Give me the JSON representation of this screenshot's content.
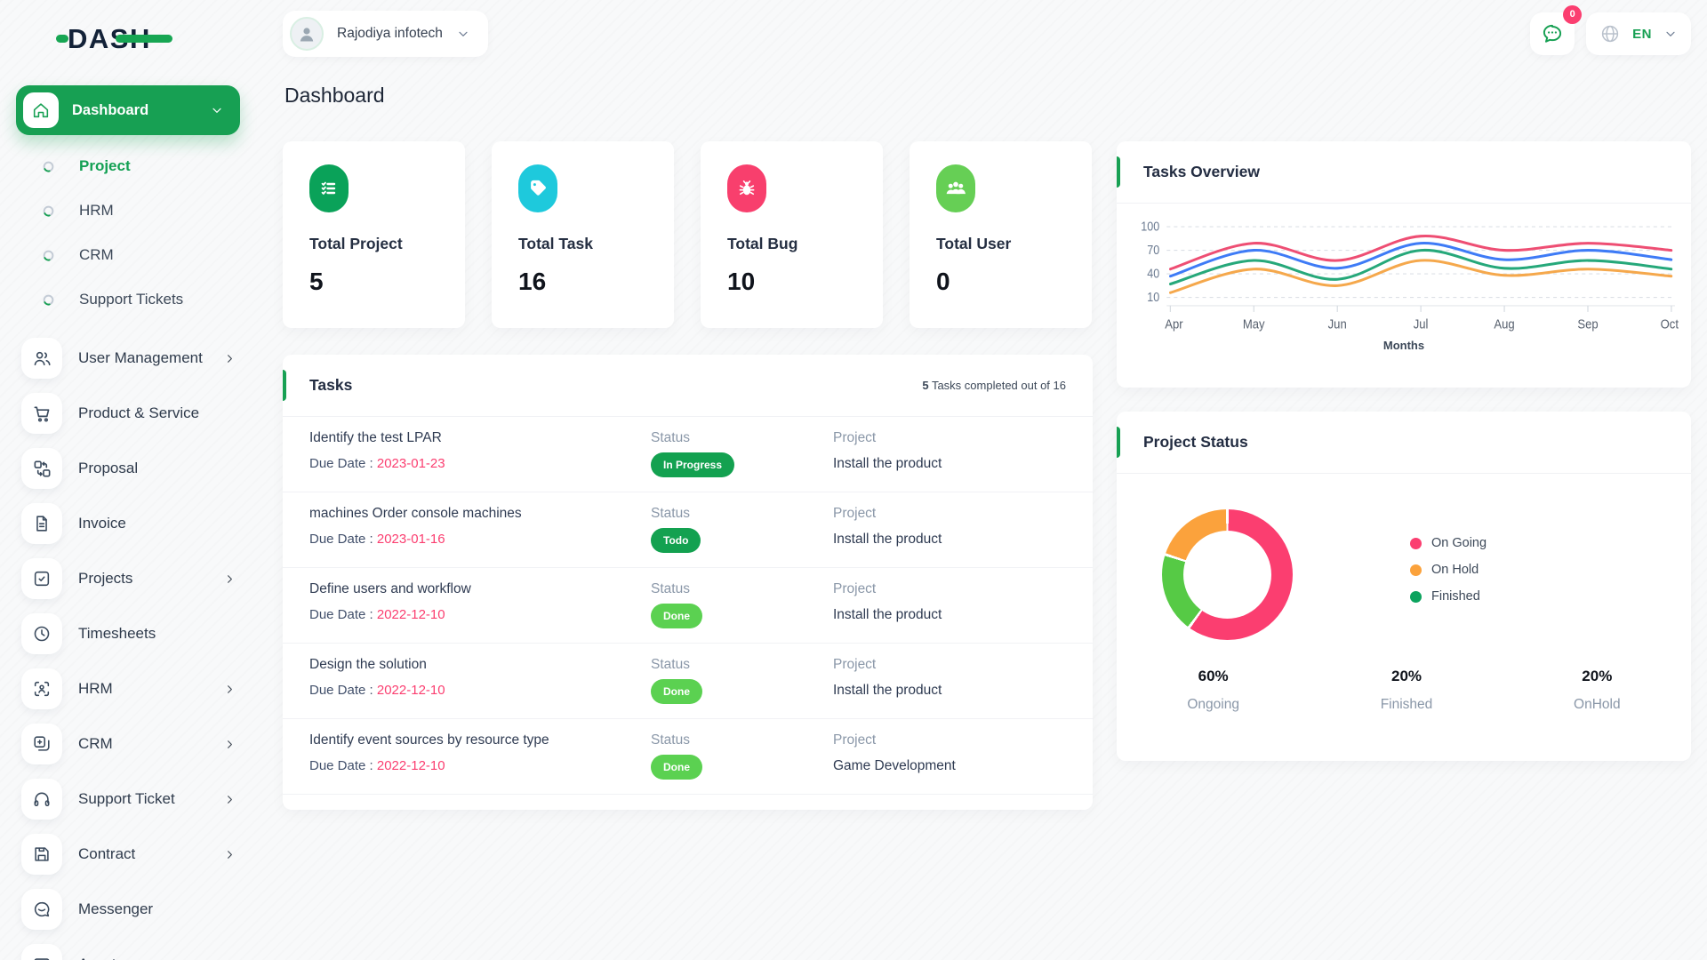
{
  "brand": {
    "name": "DASH"
  },
  "header": {
    "workspace": "Rajodiya infotech",
    "messages_badge": "0",
    "language": "EN"
  },
  "page_title": "Dashboard",
  "sidebar": {
    "dashboard_label": "Dashboard",
    "sub_items": [
      {
        "label": "Project",
        "active": true
      },
      {
        "label": "HRM",
        "active": false
      },
      {
        "label": "CRM",
        "active": false
      },
      {
        "label": "Support Tickets",
        "active": false
      }
    ],
    "items": [
      {
        "label": "User Management",
        "icon": "users-icon",
        "chevron": true
      },
      {
        "label": "Product & Service",
        "icon": "cart-icon",
        "chevron": false
      },
      {
        "label": "Proposal",
        "icon": "proposal-icon",
        "chevron": false
      },
      {
        "label": "Invoice",
        "icon": "invoice-icon",
        "chevron": false
      },
      {
        "label": "Projects",
        "icon": "projects-icon",
        "chevron": true
      },
      {
        "label": "Timesheets",
        "icon": "clock-icon",
        "chevron": false
      },
      {
        "label": "HRM",
        "icon": "hrm-icon",
        "chevron": true
      },
      {
        "label": "CRM",
        "icon": "crm-icon",
        "chevron": true
      },
      {
        "label": "Support Ticket",
        "icon": "headset-icon",
        "chevron": true
      },
      {
        "label": "Contract",
        "icon": "contract-icon",
        "chevron": true
      },
      {
        "label": "Messenger",
        "icon": "messenger-icon",
        "chevron": false
      },
      {
        "label": "Assets",
        "icon": "assets-icon",
        "chevron": false
      }
    ]
  },
  "stats": [
    {
      "label": "Total Project",
      "value": "5",
      "color": "#0aa259",
      "icon": "checklist-icon"
    },
    {
      "label": "Total Task",
      "value": "16",
      "color": "#1ec9dc",
      "icon": "tag-icon"
    },
    {
      "label": "Total Bug",
      "value": "10",
      "color": "#f83f6d",
      "icon": "bug-icon"
    },
    {
      "label": "Total User",
      "value": "0",
      "color": "#66cf55",
      "icon": "group-icon"
    }
  ],
  "tasks_card": {
    "title": "Tasks",
    "summary_count": "5",
    "summary_rest": " Tasks completed out of 16",
    "status_header": "Status",
    "project_header": "Project",
    "due_label": "Due Date : ",
    "rows": [
      {
        "title": "Identify the test LPAR",
        "due": "2023-01-23",
        "status": "In Progress",
        "status_color": "#13a150",
        "project": "Install the product"
      },
      {
        "title": "machines Order console machines",
        "due": "2023-01-16",
        "status": "Todo",
        "status_color": "#13a150",
        "project": "Install the product"
      },
      {
        "title": "Define users and workflow",
        "due": "2022-12-10",
        "status": "Done",
        "status_color": "#5bd151",
        "project": "Install the product"
      },
      {
        "title": "Design the solution",
        "due": "2022-12-10",
        "status": "Done",
        "status_color": "#5bd151",
        "project": "Install the product"
      },
      {
        "title": "Identify event sources by resource type",
        "due": "2022-12-10",
        "status": "Done",
        "status_color": "#5bd151",
        "project": "Game Development"
      }
    ]
  },
  "chart_data": [
    {
      "type": "line",
      "title": "Tasks Overview",
      "x": [
        "Apr",
        "May",
        "Jun",
        "Jul",
        "Aug",
        "Sep",
        "Oct"
      ],
      "xlabel": "Months",
      "yticks": [
        10,
        40,
        70,
        100
      ],
      "ylim": [
        10,
        100
      ],
      "grid": "dashed-horizontal",
      "legend_position": "none",
      "series": [
        {
          "name": "pink",
          "color": "#ee4e73",
          "values": [
            46,
            79,
            57,
            88,
            70,
            79,
            70
          ]
        },
        {
          "name": "blue",
          "color": "#3e7bf6",
          "values": [
            37,
            70,
            47,
            79,
            58,
            70,
            58
          ]
        },
        {
          "name": "green",
          "color": "#26a87a",
          "values": [
            27,
            57,
            33,
            70,
            47,
            57,
            46
          ]
        },
        {
          "name": "orange",
          "color": "#f5a84c",
          "values": [
            16,
            46,
            25,
            57,
            38,
            46,
            37
          ]
        }
      ]
    },
    {
      "type": "pie",
      "title": "Project Status",
      "donut": true,
      "slices": [
        {
          "label": "On Going",
          "value": 60,
          "color": "#fb3e70"
        },
        {
          "label": "Finished",
          "value": 20,
          "color": "#56ca45"
        },
        {
          "label": "On Hold",
          "value": 20,
          "color": "#fba23c"
        }
      ],
      "legend": [
        {
          "label": "On Going",
          "color": "#fb3e70"
        },
        {
          "label": "On Hold",
          "color": "#fba23c"
        },
        {
          "label": "Finished",
          "color": "#0ca35e"
        }
      ],
      "stats": [
        {
          "pct": "60%",
          "label": "Ongoing"
        },
        {
          "pct": "20%",
          "label": "Finished"
        },
        {
          "pct": "20%",
          "label": "OnHold"
        }
      ]
    }
  ]
}
